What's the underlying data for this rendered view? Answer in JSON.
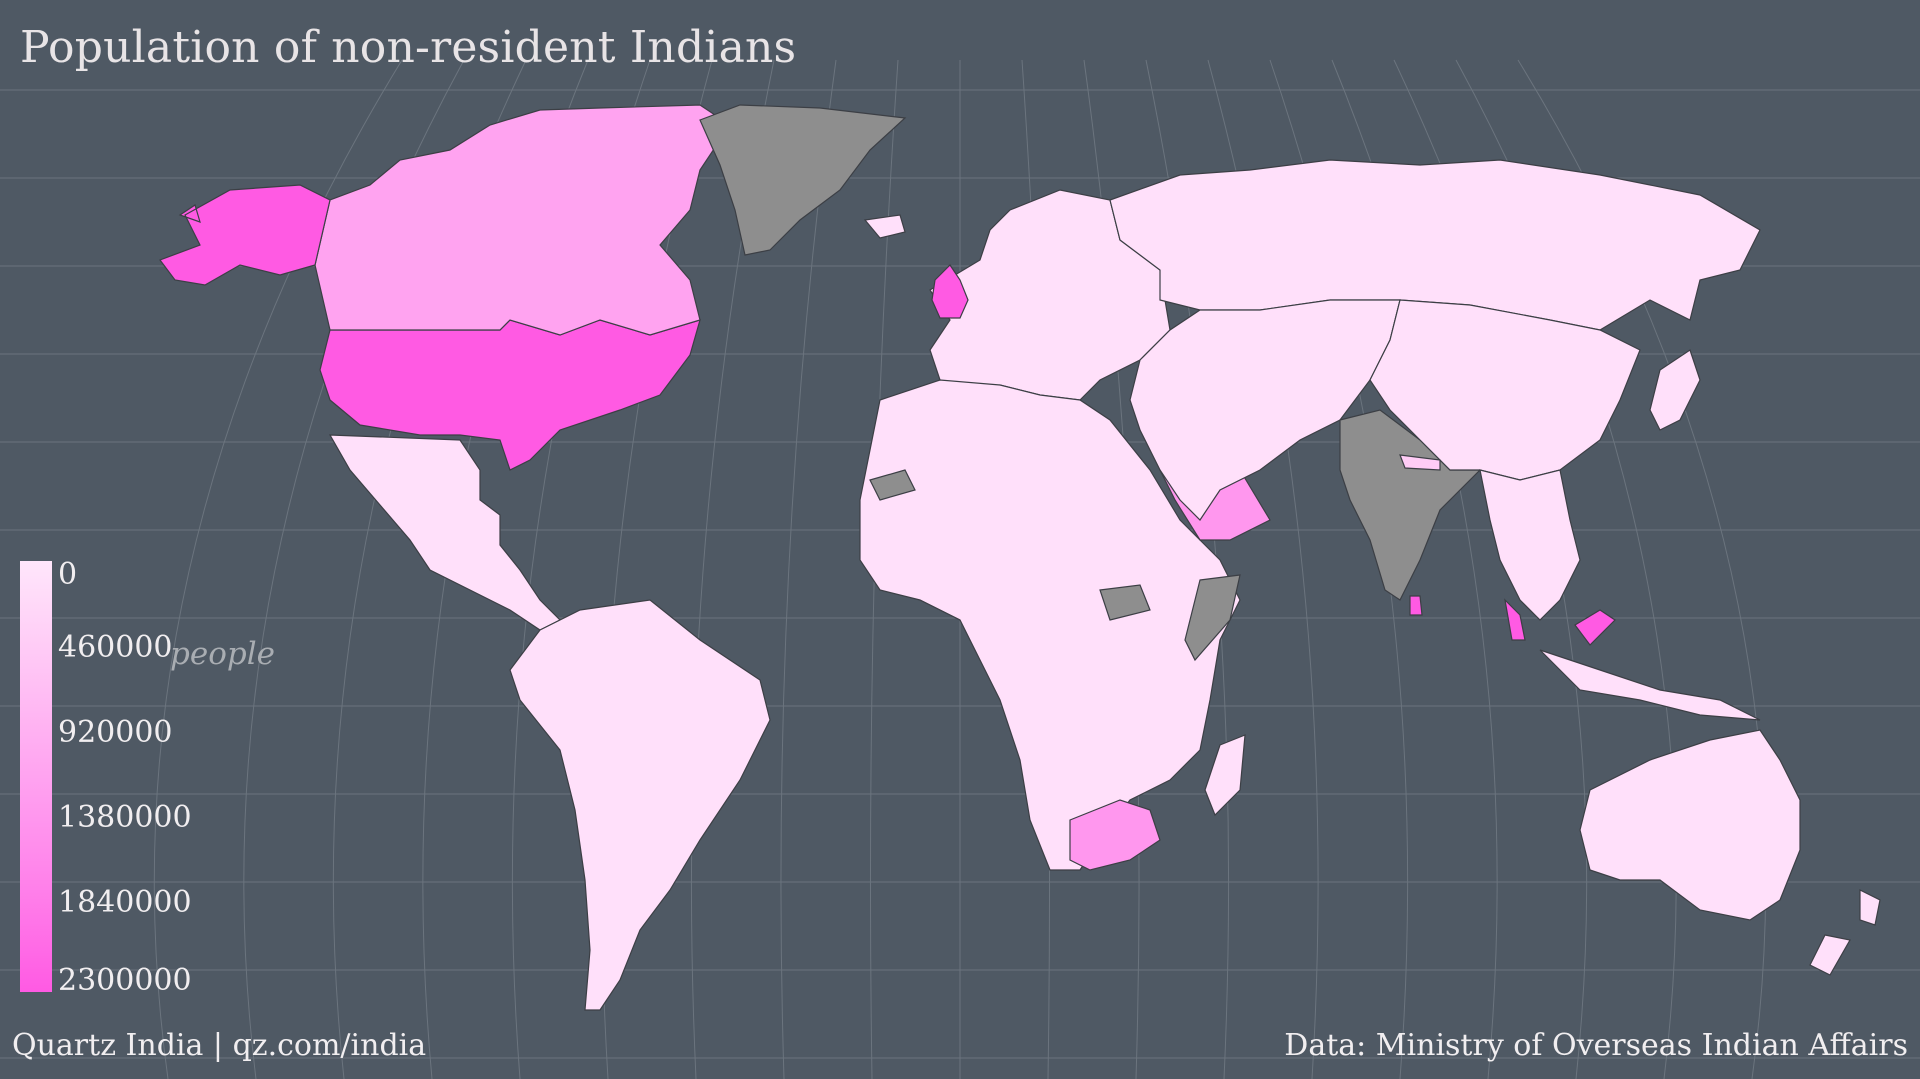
{
  "title": "Population of non-resident Indians",
  "legend": {
    "unit": "people",
    "ticks": [
      "0",
      "460000",
      "920000",
      "1380000",
      "1840000",
      "2300000"
    ],
    "colors": [
      "#ffe6fb",
      "#ffccf6",
      "#ffb1f2",
      "#ff97ee",
      "#ff7ce9",
      "#ff5ae3"
    ]
  },
  "colors": {
    "background": "#4f5964",
    "no_data": "#8e8e8e",
    "border": "#3c3f45",
    "graticule": "#6b747e"
  },
  "regions": [
    {
      "name": "United States",
      "color": "#ff5ae3"
    },
    {
      "name": "Canada",
      "color": "#ffa3f0"
    },
    {
      "name": "Alaska",
      "color": "#ff5ae3"
    },
    {
      "name": "Greenland",
      "color": "#8e8e8e"
    },
    {
      "name": "Mexico & Central America",
      "color": "#ffe0fa"
    },
    {
      "name": "South America",
      "color": "#ffe0fa"
    },
    {
      "name": "Europe",
      "color": "#ffe0fa"
    },
    {
      "name": "United Kingdom",
      "color": "#ff5ae3"
    },
    {
      "name": "Russia",
      "color": "#ffe0fa"
    },
    {
      "name": "Africa",
      "color": "#ffe0fa"
    },
    {
      "name": "South Africa",
      "color": "#ff97ee"
    },
    {
      "name": "Saudi Arabia",
      "color": "#ff97ee"
    },
    {
      "name": "Middle East & Central Asia",
      "color": "#ffe0fa"
    },
    {
      "name": "India",
      "color": "#8e8e8e"
    },
    {
      "name": "China & East Asia",
      "color": "#ffe0fa"
    },
    {
      "name": "Southeast Asia",
      "color": "#ffe0fa"
    },
    {
      "name": "Malaysia",
      "color": "#ff5ae3"
    },
    {
      "name": "Australia",
      "color": "#ffe0fa"
    },
    {
      "name": "New Zealand",
      "color": "#ffe0fa"
    },
    {
      "name": "Madagascar",
      "color": "#ffe0fa"
    },
    {
      "name": "Japan",
      "color": "#ffe0fa"
    },
    {
      "name": "Sri Lanka",
      "color": "#ff5ae3"
    },
    {
      "name": "Nepal",
      "color": "#ffccf6"
    },
    {
      "name": "Western Sahara",
      "color": "#8e8e8e"
    },
    {
      "name": "South Sudan",
      "color": "#8e8e8e"
    },
    {
      "name": "Somalia",
      "color": "#8e8e8e"
    },
    {
      "name": "Iceland",
      "color": "#ffe0fa"
    }
  ],
  "credits": {
    "left": "Quartz India | qz.com/india",
    "right": "Data: Ministry of Overseas Indian Affairs"
  }
}
